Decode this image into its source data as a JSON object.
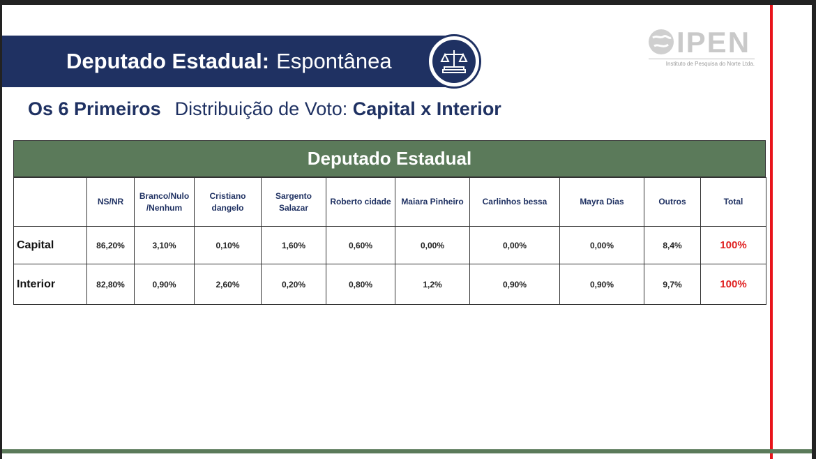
{
  "header": {
    "title_bold": "Deputado Estadual:",
    "title_regular": "Espontânea"
  },
  "logo": {
    "name": "IPEN",
    "subtitle": "Instituto de Pesquisa do Norte Ltda.",
    "icon": "globe-icon"
  },
  "emblem": {
    "icon": "scales-of-justice-icon"
  },
  "subtitle": {
    "part1": "Os 6 Primeiros",
    "part2": "Distribuição de Voto:",
    "part3": "Capital x Interior"
  },
  "table": {
    "title": "Deputado Estadual",
    "columns": [
      "",
      "NS/NR",
      "Branco/Nulo /Nenhum",
      "Cristiano dangelo",
      "Sargento Salazar",
      "Roberto cidade",
      "Maiara Pinheiro",
      "Carlinhos bessa",
      "Mayra Dias",
      "Outros",
      "Total"
    ],
    "rows": [
      {
        "label": "Capital",
        "values": [
          "86,20%",
          "3,10%",
          "0,10%",
          "1,60%",
          "0,60%",
          "0,00%",
          "0,00%",
          "0,00%",
          "8,4%"
        ],
        "total": "100%"
      },
      {
        "label": "Interior",
        "values": [
          "82,80%",
          "0,90%",
          "2,60%",
          "0,20%",
          "0,80%",
          "1,2%",
          "0,90%",
          "0,90%",
          "9,7%"
        ],
        "total": "100%"
      }
    ]
  },
  "colors": {
    "navy": "#1f3162",
    "green": "#5b7a5a",
    "red": "#e8141b"
  }
}
